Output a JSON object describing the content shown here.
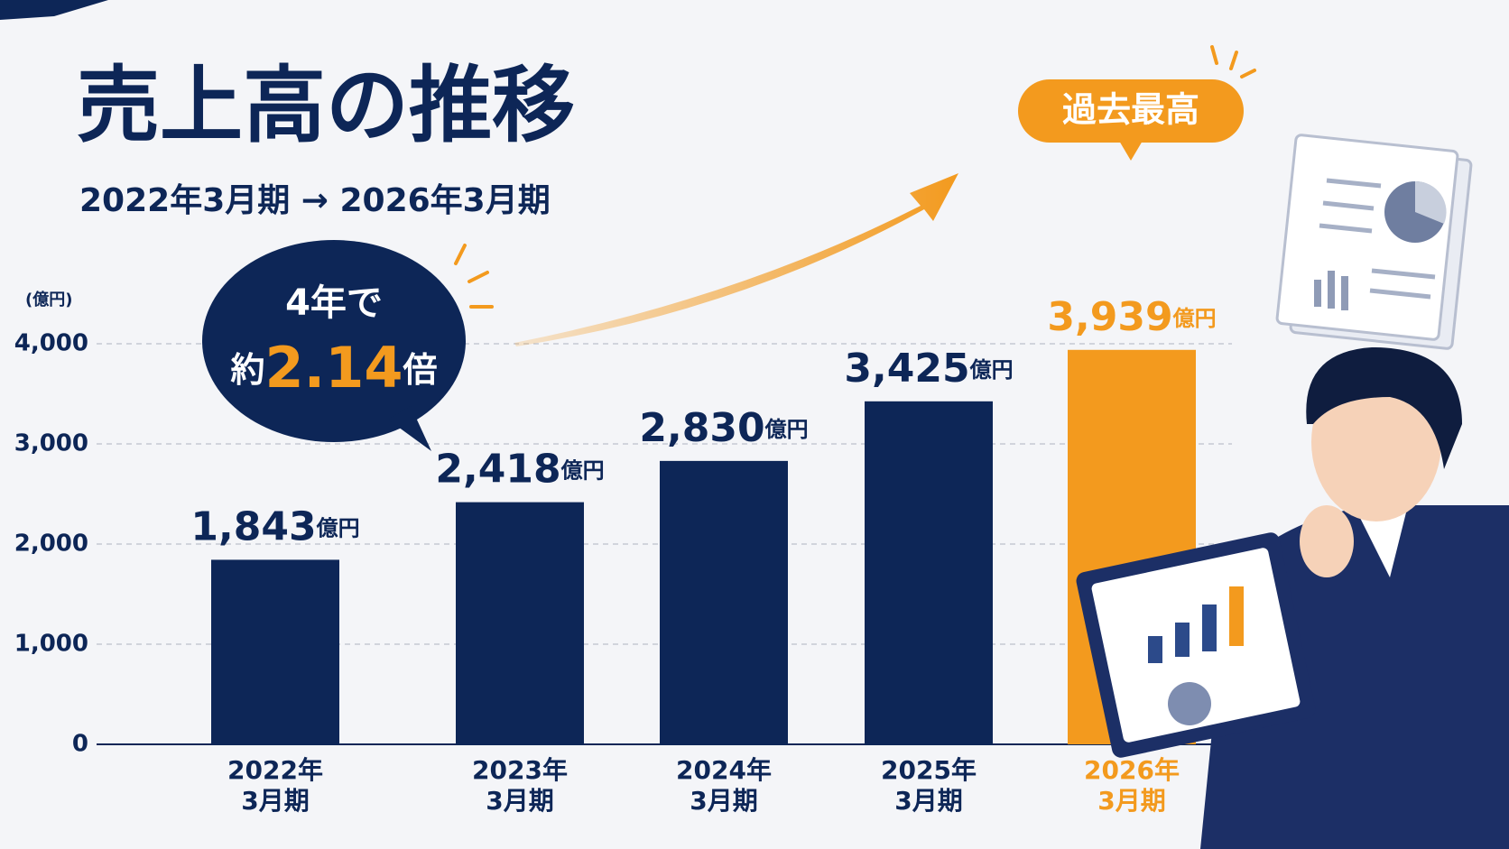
{
  "chart_data": {
    "type": "bar",
    "title": "売上高の推移",
    "subtitle": "2022年3月期 → 2026年3月期",
    "y_axis_label": "(億円)",
    "categories": [
      [
        "2022年",
        "3月期"
      ],
      [
        "2023年",
        "3月期"
      ],
      [
        "2024年",
        "3月期"
      ],
      [
        "2025年",
        "3月期"
      ],
      [
        "2026年",
        "3月期"
      ]
    ],
    "values": [
      1843,
      2418,
      2830,
      3425,
      3939
    ],
    "value_labels": [
      "1,843",
      "2,418",
      "2,830",
      "3,425",
      "3,939"
    ],
    "value_unit": "億円",
    "colors": [
      "#0d2657",
      "#0d2657",
      "#0d2657",
      "#0d2657",
      "#f39a1e"
    ],
    "ylim": [
      0,
      4000
    ],
    "yticks": [
      0,
      {
        "value": 1000,
        "label": "1,000"
      },
      {
        "value": 2000,
        "label": "2,000"
      },
      {
        "value": 3000,
        "label": "3,000"
      },
      {
        "value": 4000,
        "label": "4,000"
      }
    ],
    "grid": true,
    "callout": {
      "line1": "4年で",
      "prefix": "約",
      "highlight": "2.14",
      "suffix": "倍"
    },
    "badge": "過去最高"
  }
}
